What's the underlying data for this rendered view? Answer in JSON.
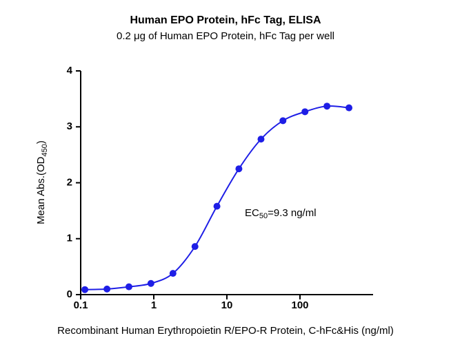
{
  "chart_data": {
    "type": "scatter",
    "title": "Human EPO Protein, hFc Tag, ELISA",
    "subtitle": "0.2 μg of Human EPO Protein, hFc Tag per well",
    "x_label": "Recombinant Human Erythropoietin R/EPO-R Protein, C-hFc&His (ng/ml)",
    "y_label": {
      "text": "Mean Abs.(OD",
      "sub": "450",
      "end": ")"
    },
    "annotation": {
      "text": "EC",
      "sub": "50",
      "end": "=9.3 ng/ml"
    },
    "x_scale": "log",
    "xlim": [
      0.1,
      1000
    ],
    "xticks": [
      0.1,
      1,
      10,
      100
    ],
    "ylim": [
      0,
      4
    ],
    "yticks": [
      0,
      1,
      2,
      3,
      4
    ],
    "series": [
      {
        "color": "#1e1ee6",
        "x": [
          0.114,
          0.229,
          0.457,
          0.914,
          1.83,
          3.66,
          7.31,
          14.6,
          29.3,
          58.5,
          117,
          234,
          468
        ],
        "values": [
          0.09,
          0.1,
          0.14,
          0.2,
          0.38,
          0.86,
          1.58,
          2.25,
          2.78,
          3.11,
          3.27,
          3.37,
          3.34
        ]
      }
    ]
  }
}
